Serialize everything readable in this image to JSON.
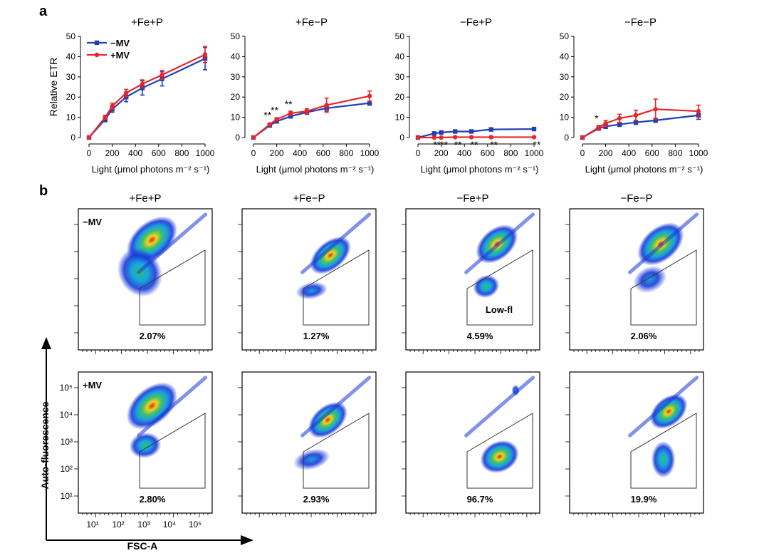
{
  "panel_a": {
    "letter": "a",
    "chart_data": [
      {
        "type": "line",
        "title": "+Fe+P",
        "xlabel": "Light (μmol photons m⁻² s⁻¹)",
        "ylabel": "Relative ETR",
        "xlim": [
          0,
          1000
        ],
        "ylim": [
          0,
          50
        ],
        "xticks": [
          0,
          200,
          400,
          600,
          800,
          1000
        ],
        "yticks": [
          0,
          10,
          20,
          30,
          40,
          50
        ],
        "x": [
          0,
          140,
          200,
          320,
          460,
          630,
          1000
        ],
        "series": [
          {
            "name": "−MV",
            "color": "#1f3fb3",
            "values": [
              0,
              9,
              14,
              20,
              24.5,
              29,
              39
            ],
            "err": [
              0.4,
              1.2,
              1.5,
              2.3,
              3.5,
              3.5,
              5.5
            ]
          },
          {
            "name": "+MV",
            "color": "#e8262a",
            "values": [
              0,
              10,
              15.5,
              22,
              26.5,
              31,
              41
            ],
            "err": [
              0.4,
              1.0,
              1.5,
              1.8,
              2.0,
              2.2,
              4.0
            ]
          }
        ],
        "annotations": []
      },
      {
        "type": "line",
        "title": "+Fe−P",
        "xlabel": "Light (μmol photons m⁻² s⁻¹)",
        "xlim": [
          0,
          1000
        ],
        "ylim": [
          0,
          50
        ],
        "xticks": [
          0,
          200,
          400,
          600,
          800,
          1000
        ],
        "yticks": [
          0,
          10,
          20,
          30,
          40,
          50
        ],
        "x": [
          0,
          140,
          200,
          320,
          460,
          630,
          1000
        ],
        "series": [
          {
            "name": "−MV",
            "color": "#1f3fb3",
            "values": [
              0,
              6,
              8,
              10.5,
              12.5,
              14.5,
              17
            ],
            "err": [
              0.3,
              0.6,
              0.8,
              0.8,
              1.0,
              1.5,
              1.0
            ]
          },
          {
            "name": "+MV",
            "color": "#e8262a",
            "values": [
              0,
              6.5,
              9,
              12,
              13,
              16,
              20.5
            ],
            "err": [
              0.3,
              0.6,
              0.8,
              1.0,
              1.2,
              3.5,
              2.5
            ]
          }
        ],
        "annotations": [
          {
            "text": "**",
            "x": 140,
            "y": 6.5
          },
          {
            "text": "**",
            "x": 200,
            "y": 9
          },
          {
            "text": "**",
            "x": 320,
            "y": 12
          }
        ]
      },
      {
        "type": "line",
        "title": "−Fe+P",
        "xlabel": "Light (μmol photons m⁻² s⁻¹)",
        "xlim": [
          0,
          1000
        ],
        "ylim": [
          0,
          50
        ],
        "xticks": [
          0,
          200,
          400,
          600,
          800,
          1000
        ],
        "yticks": [
          0,
          10,
          20,
          30,
          40,
          50
        ],
        "x": [
          0,
          140,
          200,
          320,
          460,
          630,
          1000
        ],
        "series": [
          {
            "name": "−MV",
            "color": "#1f3fb3",
            "values": [
              0,
              2,
              2.5,
              3,
              3,
              4,
              4.2
            ],
            "err": [
              0.2,
              0.3,
              0.3,
              0.3,
              0.3,
              0.3,
              0.3
            ]
          },
          {
            "name": "+MV",
            "color": "#e8262a",
            "values": [
              0,
              0,
              0,
              0.2,
              0.2,
              0.2,
              0.2
            ],
            "err": [
              0.2,
              0.2,
              0.2,
              0.2,
              0.2,
              0.2,
              0.2
            ]
          }
        ],
        "annotations": [
          {
            "text": "**",
            "x": 140,
            "y": 0
          },
          {
            "text": "**",
            "x": 200,
            "y": 0
          },
          {
            "text": "**",
            "x": 320,
            "y": 0
          },
          {
            "text": "**",
            "x": 460,
            "y": 0
          },
          {
            "text": "**",
            "x": 630,
            "y": 0
          },
          {
            "text": "**",
            "x": 1000,
            "y": 0
          }
        ]
      },
      {
        "type": "line",
        "title": "−Fe−P",
        "xlabel": "Light (μmol photons m⁻² s⁻¹)",
        "xlim": [
          0,
          1000
        ],
        "ylim": [
          0,
          50
        ],
        "xticks": [
          0,
          200,
          400,
          600,
          800,
          1000
        ],
        "yticks": [
          0,
          10,
          20,
          30,
          40,
          50
        ],
        "x": [
          0,
          140,
          200,
          320,
          460,
          630,
          1000
        ],
        "series": [
          {
            "name": "−MV",
            "color": "#1f3fb3",
            "values": [
              0,
              4.5,
              5.5,
              6.5,
              7.5,
              8.5,
              11
            ],
            "err": [
              0.3,
              0.8,
              1.0,
              1.0,
              1.0,
              1.0,
              2.0
            ]
          },
          {
            "name": "+MV",
            "color": "#e8262a",
            "values": [
              0,
              5,
              7,
              9.5,
              11,
              14,
              13
            ],
            "err": [
              0.3,
              1.0,
              1.5,
              2.0,
              2.5,
              5.0,
              3.0
            ]
          }
        ],
        "annotations": [
          {
            "text": "*",
            "x": 140,
            "y": 5
          }
        ]
      }
    ],
    "legend": [
      {
        "label": "−MV",
        "color": "#1f3fb3"
      },
      {
        "label": "+MV",
        "color": "#e8262a"
      }
    ]
  },
  "panel_b": {
    "letter": "b",
    "columns": [
      "+Fe+P",
      "+Fe−P",
      "−Fe+P",
      "−Fe−P"
    ],
    "rows": [
      "−MV",
      "+MV"
    ],
    "gate_label": "Low-fl",
    "percentages": [
      [
        "2.07%",
        "1.27%",
        "4.59%",
        "2.06%"
      ],
      [
        "2.80%",
        "2.93%",
        "96.7%",
        "19.9%"
      ]
    ],
    "y_axis_label": "Auto-fluorescence",
    "x_axis_label": "FSC-A",
    "chart_data": {
      "type": "scatter",
      "xlabel": "FSC-A",
      "ylabel": "Auto-fluorescence",
      "xscale": "log",
      "yscale": "log",
      "xtick_labels": [
        "10¹",
        "10²",
        "10³",
        "10⁴",
        "10⁵"
      ],
      "ytick_labels": [
        "10¹",
        "10²",
        "10³",
        "10⁴",
        "10⁵"
      ]
    }
  }
}
